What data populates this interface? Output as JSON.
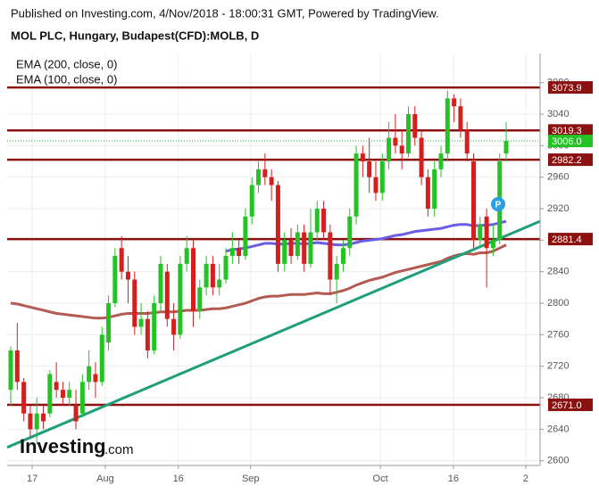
{
  "header": {
    "published": "Published on Investing.com, 4/Nov/2018 - 18:00:31 GMT, Powered by TradingView.",
    "symbol": "MOL PLC, Hungary, Budapest(CFD):MOLB, D"
  },
  "logo": {
    "name": "Investing",
    "suffix": ".com"
  },
  "chart_data": {
    "type": "candlestick",
    "x": [
      0,
      1,
      2,
      3,
      4,
      5,
      6,
      7,
      8,
      9,
      10,
      11,
      12,
      13,
      14,
      15,
      16,
      17,
      18,
      19,
      20,
      21,
      22,
      23,
      24,
      25,
      26,
      27,
      28,
      29,
      30,
      31,
      32,
      33,
      34,
      35,
      36,
      37,
      38,
      39,
      40,
      41,
      42,
      43,
      44,
      45,
      46,
      47,
      48,
      49,
      50,
      51,
      52,
      53,
      54,
      55,
      56,
      57,
      58,
      59,
      60,
      61,
      62,
      63,
      64,
      65,
      66,
      67,
      68,
      69,
      70,
      71,
      72,
      73,
      74,
      75,
      76
    ],
    "open": [
      2690,
      2740,
      2700,
      2660,
      2640,
      2660,
      2660,
      2700,
      2690,
      2680,
      2670,
      2660,
      2700,
      2710,
      2700,
      2750,
      2800,
      2870,
      2840,
      2830,
      2770,
      2780,
      2740,
      2800,
      2840,
      2780,
      2760,
      2850,
      2870,
      2790,
      2820,
      2850,
      2820,
      2830,
      2860,
      2870,
      2860,
      2910,
      2950,
      2970,
      2960,
      2950,
      2850,
      2880,
      2860,
      2890,
      2850,
      2890,
      2920,
      2890,
      2830,
      2850,
      2870,
      2910,
      2990,
      2980,
      2960,
      2940,
      2980,
      3010,
      3000,
      2990,
      3040,
      3010,
      2960,
      2920,
      2970,
      2990,
      3060,
      3050,
      3020,
      2980,
      2880,
      2910,
      2870,
      2880,
      2990
    ],
    "high": [
      2745,
      2775,
      2705,
      2670,
      2680,
      2670,
      2715,
      2725,
      2700,
      2700,
      2690,
      2710,
      2740,
      2725,
      2770,
      2810,
      2870,
      2885,
      2860,
      2840,
      2800,
      2790,
      2810,
      2860,
      2850,
      2800,
      2860,
      2885,
      2880,
      2830,
      2860,
      2860,
      2850,
      2870,
      2890,
      2880,
      2920,
      2960,
      2980,
      2990,
      2970,
      2955,
      2890,
      2895,
      2900,
      2900,
      2920,
      2930,
      2930,
      2900,
      2860,
      2880,
      2920,
      3000,
      3000,
      3010,
      2980,
      2990,
      3030,
      3040,
      3020,
      3050,
      3050,
      3020,
      2970,
      2980,
      3000,
      3070,
      3065,
      3060,
      3030,
      2990,
      2910,
      2920,
      2900,
      2990,
      3030
    ],
    "low": [
      2670,
      2690,
      2650,
      2630,
      2620,
      2640,
      2655,
      2680,
      2670,
      2670,
      2640,
      2655,
      2690,
      2680,
      2695,
      2740,
      2795,
      2830,
      2800,
      2760,
      2760,
      2730,
      2735,
      2790,
      2770,
      2740,
      2755,
      2840,
      2770,
      2780,
      2810,
      2810,
      2810,
      2825,
      2850,
      2850,
      2855,
      2900,
      2940,
      2950,
      2930,
      2840,
      2840,
      2850,
      2855,
      2840,
      2845,
      2880,
      2880,
      2810,
      2800,
      2840,
      2860,
      2900,
      2960,
      2940,
      2930,
      2930,
      2970,
      2990,
      2970,
      2985,
      3000,
      2950,
      2910,
      2910,
      2960,
      2980,
      3030,
      3010,
      2980,
      2870,
      2870,
      2820,
      2860,
      2875,
      2980
    ],
    "close": [
      2740,
      2700,
      2660,
      2640,
      2660,
      2650,
      2710,
      2690,
      2680,
      2690,
      2650,
      2700,
      2720,
      2700,
      2760,
      2800,
      2860,
      2840,
      2830,
      2770,
      2780,
      2740,
      2800,
      2850,
      2780,
      2760,
      2850,
      2870,
      2790,
      2820,
      2850,
      2820,
      2830,
      2860,
      2870,
      2860,
      2910,
      2950,
      2970,
      2960,
      2950,
      2850,
      2880,
      2860,
      2890,
      2850,
      2890,
      2920,
      2890,
      2830,
      2850,
      2870,
      2910,
      2990,
      2980,
      2960,
      2940,
      2980,
      3010,
      3000,
      2990,
      3040,
      3010,
      2960,
      2920,
      2970,
      2990,
      3060,
      3050,
      3020,
      2990,
      2880,
      2900,
      2870,
      2880,
      2980,
      3006
    ],
    "up_color": "#22c322",
    "down_color": "#d41f1f",
    "series": [
      {
        "name": "EMA (200, close, 0)",
        "color": "#b35a52",
        "values": [
          2800,
          2799,
          2797,
          2795,
          2793,
          2791,
          2789,
          2787,
          2786,
          2785,
          2784,
          2783,
          2782,
          2781,
          2781,
          2782,
          2784,
          2786,
          2787,
          2787,
          2787,
          2787,
          2788,
          2789,
          2789,
          2789,
          2790,
          2791,
          2791,
          2791,
          2792,
          2793,
          2793,
          2794,
          2796,
          2798,
          2800,
          2803,
          2806,
          2808,
          2809,
          2809,
          2810,
          2811,
          2811,
          2811,
          2812,
          2813,
          2812,
          2812,
          2814,
          2816,
          2819,
          2823,
          2826,
          2829,
          2831,
          2833,
          2836,
          2839,
          2841,
          2843,
          2845,
          2847,
          2849,
          2851,
          2853,
          2857,
          2860,
          2862,
          2863,
          2862,
          2864,
          2864,
          2866,
          2870,
          2874
        ]
      },
      {
        "name": "EMA (100, close, 0)",
        "color": "#6a5ce6",
        "values": [
          null,
          null,
          null,
          null,
          null,
          null,
          null,
          null,
          null,
          null,
          null,
          null,
          null,
          null,
          null,
          null,
          null,
          null,
          null,
          null,
          null,
          null,
          null,
          null,
          null,
          null,
          null,
          null,
          null,
          null,
          null,
          null,
          null,
          2866,
          2868,
          2869,
          2870,
          2872,
          2874,
          2876,
          2876,
          2875,
          2875,
          2876,
          2876,
          2875,
          2876,
          2877,
          2876,
          2875,
          2874,
          2874,
          2875,
          2877,
          2879,
          2880,
          2881,
          2882,
          2884,
          2886,
          2887,
          2889,
          2891,
          2892,
          2893,
          2894,
          2895,
          2897,
          2899,
          2900,
          2900,
          2898,
          2899,
          2899,
          2900,
          2902,
          2904
        ]
      }
    ],
    "trendline": {
      "x": [
        -0.55,
        81.2
      ],
      "y": [
        2617,
        2904
      ],
      "color": "#1f9e7c"
    },
    "levels": {
      "values": [
        3073.9,
        3019.3,
        2982.2,
        2881.4,
        2671.0
      ],
      "value_labels": [
        "3073.9",
        "3019.3",
        "2982.2",
        "2881.4",
        "2671.0"
      ],
      "color": "#8b1010"
    },
    "last": {
      "value": 3006,
      "label": "3006.0",
      "color": "#22c322"
    },
    "xlim": [
      -0.55,
      81.2
    ],
    "xticks": [
      {
        "value": 3.3,
        "label": "17"
      },
      {
        "value": 14.5,
        "label": "Aug"
      },
      {
        "value": 25.7,
        "label": "16"
      },
      {
        "value": 36.8,
        "label": "Sep"
      },
      {
        "value": 56.7,
        "label": "Oct"
      },
      {
        "value": 67.9,
        "label": "16"
      },
      {
        "value": 79,
        "label": "2"
      }
    ],
    "ylim": [
      2594,
      3117
    ],
    "yticks": [
      2600,
      2640,
      2680,
      2720,
      2760,
      2800,
      2840,
      2880,
      2920,
      2960,
      3000,
      3040,
      3080
    ]
  }
}
